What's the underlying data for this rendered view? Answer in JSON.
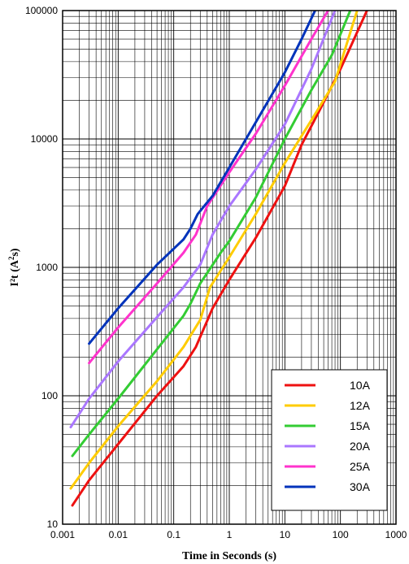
{
  "chart_data": {
    "type": "line",
    "title": "",
    "xlabel": "Time in Seconds (s)",
    "ylabel_main": "I²t (A",
    "ylabel_sup": "2",
    "ylabel_end": "s)",
    "xscale": "log",
    "yscale": "log",
    "xlim": [
      0.001,
      1000
    ],
    "ylim": [
      10,
      100000
    ],
    "grid": true,
    "legend_position": "bottom-right",
    "x_ticks": [
      "0.001",
      "0.01",
      "0.1",
      "1",
      "10",
      "100",
      "1000"
    ],
    "y_ticks": [
      "10",
      "100",
      "1000",
      "10000",
      "100000"
    ],
    "series": [
      {
        "name": "10A",
        "color": "#ee1111",
        "points": [
          [
            0.0015,
            14
          ],
          [
            0.003,
            22
          ],
          [
            0.01,
            42
          ],
          [
            0.05,
            100
          ],
          [
            0.15,
            170
          ],
          [
            0.25,
            240
          ],
          [
            0.5,
            480
          ],
          [
            1,
            800
          ],
          [
            3,
            1700
          ],
          [
            10,
            4300
          ],
          [
            20,
            9000
          ],
          [
            40,
            16000
          ],
          [
            100,
            35000
          ],
          [
            300,
            100000
          ]
        ]
      },
      {
        "name": "12A",
        "color": "#ffcc00",
        "points": [
          [
            0.0014,
            19
          ],
          [
            0.003,
            30
          ],
          [
            0.01,
            58
          ],
          [
            0.05,
            130
          ],
          [
            0.15,
            240
          ],
          [
            0.3,
            390
          ],
          [
            0.45,
            700
          ],
          [
            1,
            1200
          ],
          [
            3,
            2600
          ],
          [
            10,
            6500
          ],
          [
            30,
            14000
          ],
          [
            80,
            28000
          ],
          [
            200,
            100000
          ]
        ]
      },
      {
        "name": "15A",
        "color": "#33cc33",
        "points": [
          [
            0.0015,
            34
          ],
          [
            0.003,
            50
          ],
          [
            0.01,
            95
          ],
          [
            0.05,
            230
          ],
          [
            0.15,
            420
          ],
          [
            0.2,
            520
          ],
          [
            0.3,
            750
          ],
          [
            0.7,
            1300
          ],
          [
            1,
            1600
          ],
          [
            3,
            3500
          ],
          [
            10,
            10000
          ],
          [
            30,
            24000
          ],
          [
            70,
            45000
          ],
          [
            150,
            100000
          ]
        ]
      },
      {
        "name": "20A",
        "color": "#aa77ff",
        "points": [
          [
            0.0014,
            57
          ],
          [
            0.003,
            95
          ],
          [
            0.01,
            185
          ],
          [
            0.05,
            410
          ],
          [
            0.15,
            700
          ],
          [
            0.3,
            1050
          ],
          [
            0.5,
            1800
          ],
          [
            1,
            3000
          ],
          [
            3,
            5800
          ],
          [
            10,
            13000
          ],
          [
            30,
            35000
          ],
          [
            80,
            100000
          ]
        ]
      },
      {
        "name": "25A",
        "color": "#ff33cc",
        "points": [
          [
            0.003,
            180
          ],
          [
            0.01,
            340
          ],
          [
            0.05,
            750
          ],
          [
            0.15,
            1300
          ],
          [
            0.25,
            1800
          ],
          [
            0.4,
            3000
          ],
          [
            1,
            5500
          ],
          [
            3,
            11000
          ],
          [
            10,
            26000
          ],
          [
            30,
            60000
          ],
          [
            60,
            100000
          ]
        ]
      },
      {
        "name": "30A",
        "color": "#0033bb",
        "points": [
          [
            0.003,
            255
          ],
          [
            0.01,
            480
          ],
          [
            0.05,
            1050
          ],
          [
            0.15,
            1650
          ],
          [
            0.2,
            2000
          ],
          [
            0.27,
            2600
          ],
          [
            0.5,
            3600
          ],
          [
            1,
            6000
          ],
          [
            3,
            13500
          ],
          [
            10,
            33000
          ],
          [
            20,
            60000
          ],
          [
            35,
            100000
          ]
        ]
      }
    ]
  }
}
